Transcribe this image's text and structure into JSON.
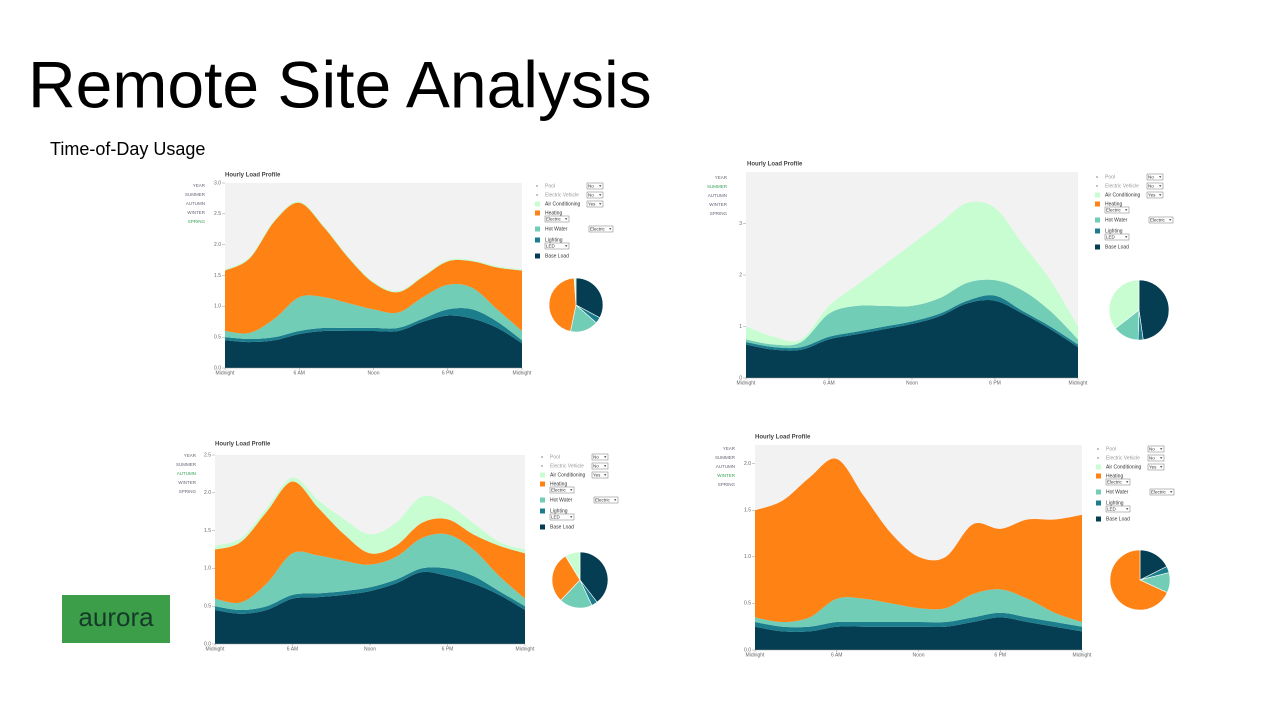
{
  "slide": {
    "title": "Remote Site Analysis",
    "subtitle": "Time-of-Day Usage",
    "logo": "aurora"
  },
  "seasons": [
    "YEAR",
    "SUMMER",
    "AUTUMN",
    "WINTER",
    "SPRING"
  ],
  "chart_data": [
    {
      "type": "area",
      "stacked": true,
      "title": "Hourly Load Profile",
      "season": "SPRING",
      "x": [
        0,
        2,
        4,
        6,
        8,
        10,
        12,
        14,
        16,
        18,
        20,
        22,
        24
      ],
      "xlim": [
        0,
        24
      ],
      "xticks": [
        {
          "value": 0,
          "label": "Midnight"
        },
        {
          "value": 6,
          "label": "6 AM"
        },
        {
          "value": 12,
          "label": "Noon"
        },
        {
          "value": 18,
          "label": "6 PM"
        },
        {
          "value": 24,
          "label": "Midnight"
        }
      ],
      "ylim": [
        0,
        3
      ],
      "yticks": [
        {
          "value": 0,
          "label": "0.0"
        },
        0.5,
        {
          "value": 1,
          "label": "1.0"
        },
        1.5,
        {
          "value": 2,
          "label": "2.0"
        },
        2.5,
        {
          "value": 3,
          "label": "3.0"
        }
      ],
      "series": [
        {
          "name": "Pool",
          "color": "#bbbbbb",
          "option": "No",
          "values": [
            0,
            0,
            0,
            0,
            0,
            0,
            0,
            0,
            0,
            0,
            0,
            0,
            0
          ]
        },
        {
          "name": "Electric Vehicle",
          "color": "#bbbbbb",
          "option": "No",
          "values": [
            0,
            0,
            0,
            0,
            0,
            0,
            0,
            0,
            0,
            0,
            0,
            0,
            0
          ]
        },
        {
          "name": "Air Conditioning",
          "color": "#c8fdd2",
          "option": "Yes",
          "values": [
            0.02,
            0.02,
            0.02,
            0.02,
            0.02,
            0.02,
            0.02,
            0.02,
            0.02,
            0.02,
            0.02,
            0.02,
            0.02
          ]
        },
        {
          "name": "Heating",
          "color": "#ff8214",
          "option": "Electric",
          "values": [
            0.98,
            1.21,
            1.58,
            1.53,
            1.13,
            0.73,
            0.43,
            0.33,
            0.33,
            0.38,
            0.43,
            0.68,
            0.98
          ]
        },
        {
          "name": "Hot Water",
          "color": "#72cdb6",
          "option": "Electric",
          "values": [
            0.1,
            0.1,
            0.3,
            0.55,
            0.5,
            0.4,
            0.3,
            0.25,
            0.35,
            0.4,
            0.35,
            0.2,
            0.15
          ]
        },
        {
          "name": "Lighting",
          "color": "#1c7d8c",
          "option": "LED",
          "values": [
            0.05,
            0.05,
            0.05,
            0.05,
            0.05,
            0.05,
            0.05,
            0.05,
            0.05,
            0.1,
            0.15,
            0.1,
            0.05
          ]
        },
        {
          "name": "Base Load",
          "color": "#053d52",
          "values": [
            0.45,
            0.42,
            0.45,
            0.55,
            0.6,
            0.6,
            0.6,
            0.6,
            0.75,
            0.85,
            0.8,
            0.65,
            0.4
          ]
        }
      ]
    },
    {
      "type": "area",
      "stacked": true,
      "title": "Hourly Load Profile",
      "season": "SUMMER",
      "x": [
        0,
        2,
        4,
        6,
        8,
        10,
        12,
        14,
        16,
        18,
        20,
        22,
        24
      ],
      "xlim": [
        0,
        24
      ],
      "xticks": [
        {
          "value": 0,
          "label": "Midnight"
        },
        {
          "value": 6,
          "label": "6 AM"
        },
        {
          "value": 12,
          "label": "Noon"
        },
        {
          "value": 18,
          "label": "6 PM"
        },
        {
          "value": 24,
          "label": "Midnight"
        }
      ],
      "ylim": [
        0,
        4
      ],
      "yticks": [
        0,
        1,
        2,
        3
      ],
      "series": [
        {
          "name": "Pool",
          "color": "#bbbbbb",
          "option": "No",
          "values": [
            0,
            0,
            0,
            0,
            0,
            0,
            0,
            0,
            0,
            0,
            0,
            0,
            0
          ]
        },
        {
          "name": "Electric Vehicle",
          "color": "#bbbbbb",
          "option": "No",
          "values": [
            0,
            0,
            0,
            0,
            0,
            0,
            0,
            0,
            0,
            0,
            0,
            0,
            0
          ]
        },
        {
          "name": "Air Conditioning",
          "color": "#c8fdd2",
          "option": "Yes",
          "values": [
            0.25,
            0.15,
            0.05,
            0.15,
            0.4,
            0.8,
            1.2,
            1.45,
            1.55,
            1.4,
            0.9,
            0.6,
            0.25
          ]
        },
        {
          "name": "Heating",
          "color": "#ff8214",
          "option": "Electric",
          "values": [
            0,
            0,
            0,
            0,
            0,
            0,
            0,
            0,
            0,
            0,
            0,
            0,
            0
          ]
        },
        {
          "name": "Hot Water",
          "color": "#72cdb6",
          "option": "Electric",
          "values": [
            0.05,
            0.05,
            0.1,
            0.45,
            0.5,
            0.4,
            0.3,
            0.3,
            0.35,
            0.3,
            0.4,
            0.3,
            0.1
          ]
        },
        {
          "name": "Lighting",
          "color": "#1c7d8c",
          "option": "LED",
          "values": [
            0.05,
            0.05,
            0.05,
            0.05,
            0.05,
            0.05,
            0.05,
            0.05,
            0.05,
            0.1,
            0.05,
            0.05,
            0.05
          ]
        },
        {
          "name": "Base Load",
          "color": "#053d52",
          "values": [
            0.65,
            0.55,
            0.55,
            0.75,
            0.85,
            0.95,
            1.05,
            1.2,
            1.45,
            1.5,
            1.25,
            0.95,
            0.6
          ]
        }
      ]
    },
    {
      "type": "area",
      "stacked": true,
      "title": "Hourly Load Profile",
      "season": "AUTUMN",
      "x": [
        0,
        2,
        4,
        6,
        8,
        10,
        12,
        14,
        16,
        18,
        20,
        22,
        24
      ],
      "xlim": [
        0,
        24
      ],
      "xticks": [
        {
          "value": 0,
          "label": "Midnight"
        },
        {
          "value": 6,
          "label": "6 AM"
        },
        {
          "value": 12,
          "label": "Noon"
        },
        {
          "value": 18,
          "label": "6 PM"
        },
        {
          "value": 24,
          "label": "Midnight"
        }
      ],
      "ylim": [
        0,
        2.5
      ],
      "yticks": [
        {
          "value": 0,
          "label": "0.0"
        },
        0.5,
        {
          "value": 1,
          "label": "1.0"
        },
        1.5,
        {
          "value": 2,
          "label": "2.0"
        },
        2.5
      ],
      "series": [
        {
          "name": "Pool",
          "color": "#bbbbbb",
          "option": "No",
          "values": [
            0,
            0,
            0,
            0,
            0,
            0,
            0,
            0,
            0,
            0,
            0,
            0,
            0
          ]
        },
        {
          "name": "Electric Vehicle",
          "color": "#bbbbbb",
          "option": "No",
          "values": [
            0,
            0,
            0,
            0,
            0,
            0,
            0,
            0,
            0,
            0,
            0,
            0,
            0
          ]
        },
        {
          "name": "Air Conditioning",
          "color": "#c8fdd2",
          "option": "Yes",
          "values": [
            0.05,
            0.05,
            0.05,
            0.05,
            0.1,
            0.2,
            0.25,
            0.3,
            0.35,
            0.2,
            0.15,
            0.05,
            0.05
          ]
        },
        {
          "name": "Heating",
          "color": "#ff8214",
          "option": "Electric",
          "values": [
            0.65,
            0.8,
            0.95,
            0.95,
            0.63,
            0.35,
            0.15,
            0.15,
            0.2,
            0.2,
            0.2,
            0.4,
            0.6
          ]
        },
        {
          "name": "Hot Water",
          "color": "#72cdb6",
          "option": "Electric",
          "values": [
            0.1,
            0.1,
            0.3,
            0.55,
            0.5,
            0.4,
            0.3,
            0.3,
            0.4,
            0.45,
            0.35,
            0.2,
            0.1
          ]
        },
        {
          "name": "Lighting",
          "color": "#1c7d8c",
          "option": "LED",
          "values": [
            0.05,
            0.05,
            0.05,
            0.05,
            0.05,
            0.05,
            0.05,
            0.05,
            0.05,
            0.1,
            0.1,
            0.05,
            0.05
          ]
        },
        {
          "name": "Base Load",
          "color": "#053d52",
          "values": [
            0.45,
            0.4,
            0.45,
            0.6,
            0.62,
            0.65,
            0.7,
            0.8,
            0.95,
            0.9,
            0.8,
            0.65,
            0.45
          ]
        }
      ]
    },
    {
      "type": "area",
      "stacked": true,
      "title": "Hourly Load Profile",
      "season": "WINTER",
      "x": [
        0,
        2,
        4,
        6,
        8,
        10,
        12,
        14,
        16,
        18,
        20,
        22,
        24
      ],
      "xlim": [
        0,
        24
      ],
      "xticks": [
        {
          "value": 0,
          "label": "Midnight"
        },
        {
          "value": 6,
          "label": "6 AM"
        },
        {
          "value": 12,
          "label": "Noon"
        },
        {
          "value": 18,
          "label": "6 PM"
        },
        {
          "value": 24,
          "label": "Midnight"
        }
      ],
      "ylim": [
        0,
        2.2
      ],
      "yticks": [
        {
          "value": 0,
          "label": "0.0"
        },
        0.5,
        {
          "value": 1,
          "label": "1.0"
        },
        1.5,
        {
          "value": 2,
          "label": "2.0"
        }
      ],
      "series": [
        {
          "name": "Pool",
          "color": "#bbbbbb",
          "option": "No",
          "values": [
            0,
            0,
            0,
            0,
            0,
            0,
            0,
            0,
            0,
            0,
            0,
            0,
            0
          ]
        },
        {
          "name": "Electric Vehicle",
          "color": "#bbbbbb",
          "option": "No",
          "values": [
            0,
            0,
            0,
            0,
            0,
            0,
            0,
            0,
            0,
            0,
            0,
            0,
            0
          ]
        },
        {
          "name": "Air Conditioning",
          "color": "#c8fdd2",
          "option": "Yes",
          "values": [
            0,
            0,
            0,
            0,
            0,
            0,
            0,
            0,
            0,
            0,
            0,
            0,
            0
          ]
        },
        {
          "name": "Heating",
          "color": "#ff8214",
          "option": "Electric",
          "values": [
            1.15,
            1.3,
            1.5,
            1.5,
            1.1,
            0.75,
            0.55,
            0.55,
            0.75,
            0.65,
            0.85,
            1.0,
            1.15
          ]
        },
        {
          "name": "Hot Water",
          "color": "#72cdb6",
          "option": "Electric",
          "values": [
            0.05,
            0.05,
            0.1,
            0.25,
            0.25,
            0.2,
            0.15,
            0.15,
            0.25,
            0.25,
            0.2,
            0.1,
            0.05
          ]
        },
        {
          "name": "Lighting",
          "color": "#1c7d8c",
          "option": "LED",
          "values": [
            0.05,
            0.05,
            0.05,
            0.05,
            0.05,
            0.05,
            0.05,
            0.05,
            0.05,
            0.05,
            0.05,
            0.05,
            0.05
          ]
        },
        {
          "name": "Base Load",
          "color": "#053d52",
          "values": [
            0.25,
            0.2,
            0.2,
            0.25,
            0.25,
            0.25,
            0.25,
            0.25,
            0.3,
            0.35,
            0.3,
            0.25,
            0.2
          ]
        }
      ]
    }
  ]
}
